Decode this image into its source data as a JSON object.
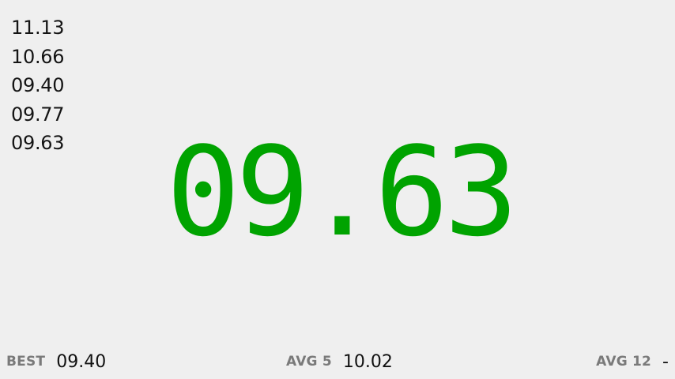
{
  "history": [
    "11.13",
    "10.66",
    "09.40",
    "09.77",
    "09.63"
  ],
  "timer": {
    "value": "09.63",
    "color": "#00a300"
  },
  "stats": {
    "best": {
      "label": "BEST",
      "value": "09.40"
    },
    "avg5": {
      "label": "AVG 5",
      "value": "10.02"
    },
    "avg12": {
      "label": "AVG 12",
      "value": "-"
    }
  }
}
